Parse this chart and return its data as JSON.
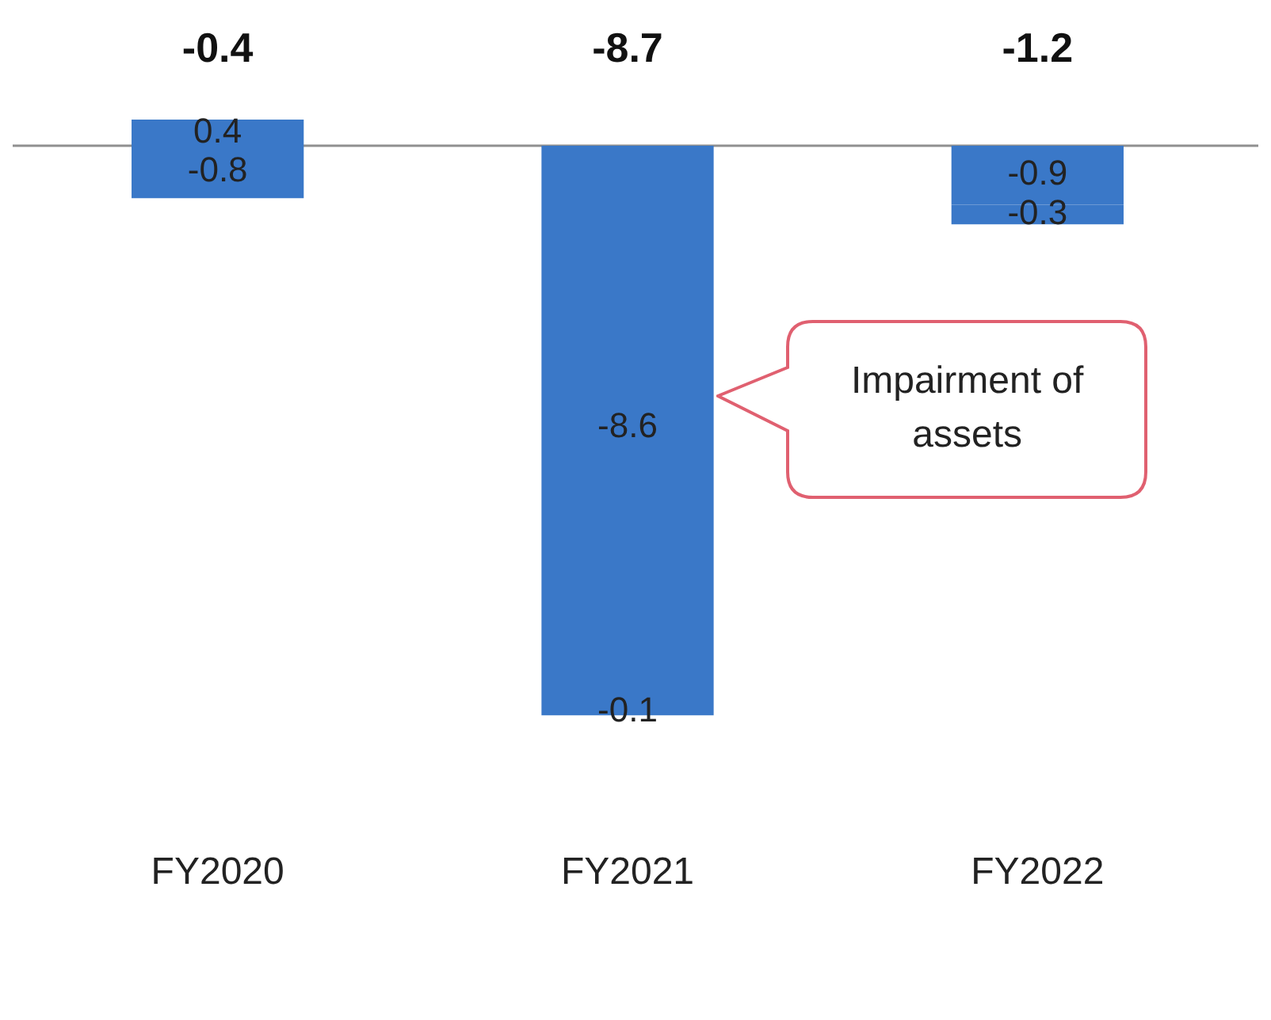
{
  "chart_data": {
    "type": "bar",
    "stacked": true,
    "data_labels": true,
    "grid": false,
    "legend": false,
    "categories": [
      "FY2020",
      "FY2021",
      "FY2022"
    ],
    "series": [
      {
        "color": "#3a78c8",
        "values": [
          0.4,
          -8.6,
          -0.9
        ]
      },
      {
        "color": "#3a78c8",
        "values": [
          -0.8,
          -0.1,
          -0.3
        ]
      }
    ],
    "totals": [
      "-0.4",
      "-8.7",
      "-1.2"
    ],
    "annotations": [
      "Impairment of assets"
    ]
  }
}
